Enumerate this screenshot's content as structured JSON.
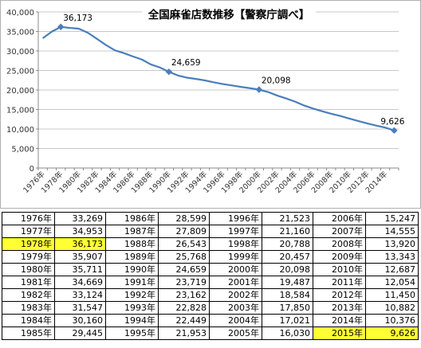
{
  "chart_data": {
    "type": "line",
    "title": "全国麻雀店数推移【警察庁調べ】",
    "xlabel": "",
    "ylabel": "",
    "ylim": [
      0,
      40000
    ],
    "yticks": [
      "0",
      "5,000",
      "10,000",
      "15,000",
      "20,000",
      "25,000",
      "30,000",
      "35,000",
      "40,000"
    ],
    "xtick_labels": [
      "1976年",
      "1978年",
      "1980年",
      "1982年",
      "1984年",
      "1986年",
      "1988年",
      "1990年",
      "1992年",
      "1994年",
      "1996年",
      "1998年",
      "2000年",
      "2002年",
      "2004年",
      "2006年",
      "2008年",
      "2010年",
      "2012年",
      "2014年"
    ],
    "grid": true,
    "legend": "none",
    "line_color": "#4a7ebb",
    "x": [
      1976,
      1977,
      1978,
      1979,
      1980,
      1981,
      1982,
      1983,
      1984,
      1985,
      1986,
      1987,
      1988,
      1989,
      1990,
      1991,
      1992,
      1993,
      1994,
      1995,
      1996,
      1997,
      1998,
      1999,
      2000,
      2001,
      2002,
      2003,
      2004,
      2005,
      2006,
      2007,
      2008,
      2009,
      2010,
      2011,
      2012,
      2013,
      2014,
      2015
    ],
    "values": [
      33269,
      34953,
      36173,
      35907,
      35711,
      34669,
      33124,
      31547,
      30160,
      29445,
      28599,
      27809,
      26543,
      25768,
      24659,
      23719,
      23162,
      22828,
      22449,
      21953,
      21523,
      21160,
      20788,
      20457,
      20098,
      19487,
      18584,
      17850,
      17021,
      16030,
      15247,
      14555,
      13920,
      13343,
      12687,
      12054,
      11450,
      10882,
      10376,
      9626
    ],
    "annotations": [
      {
        "year": 1978,
        "label": "36,173"
      },
      {
        "year": 1990,
        "label": "24,659"
      },
      {
        "year": 2000,
        "label": "20,098"
      },
      {
        "year": 2015,
        "label": "9,626"
      }
    ]
  },
  "table": {
    "highlight_color": "#ffff33",
    "columns": [
      {
        "rows": [
          [
            "1976年",
            "33,269"
          ],
          [
            "1977年",
            "34,953"
          ],
          [
            "1978年",
            "36,173"
          ],
          [
            "1979年",
            "35,907"
          ],
          [
            "1980年",
            "35,711"
          ],
          [
            "1981年",
            "34,669"
          ],
          [
            "1982年",
            "33,124"
          ],
          [
            "1983年",
            "31,547"
          ],
          [
            "1984年",
            "30,160"
          ],
          [
            "1985年",
            "29,445"
          ]
        ]
      },
      {
        "rows": [
          [
            "1986年",
            "28,599"
          ],
          [
            "1987年",
            "27,809"
          ],
          [
            "1988年",
            "26,543"
          ],
          [
            "1989年",
            "25,768"
          ],
          [
            "1990年",
            "24,659"
          ],
          [
            "1991年",
            "23,719"
          ],
          [
            "1992年",
            "23,162"
          ],
          [
            "1993年",
            "22,828"
          ],
          [
            "1994年",
            "22,449"
          ],
          [
            "1995年",
            "21,953"
          ]
        ]
      },
      {
        "rows": [
          [
            "1996年",
            "21,523"
          ],
          [
            "1997年",
            "21,160"
          ],
          [
            "1998年",
            "20,788"
          ],
          [
            "1999年",
            "20,457"
          ],
          [
            "2000年",
            "20,098"
          ],
          [
            "2001年",
            "19,487"
          ],
          [
            "2002年",
            "18,584"
          ],
          [
            "2003年",
            "17,850"
          ],
          [
            "2004年",
            "17,021"
          ],
          [
            "2005年",
            "16,030"
          ]
        ]
      },
      {
        "rows": [
          [
            "2006年",
            "15,247"
          ],
          [
            "2007年",
            "14,555"
          ],
          [
            "2008年",
            "13,920"
          ],
          [
            "2009年",
            "13,343"
          ],
          [
            "2010年",
            "12,687"
          ],
          [
            "2011年",
            "12,054"
          ],
          [
            "2012年",
            "11,450"
          ],
          [
            "2013年",
            "10,882"
          ],
          [
            "2014年",
            "10,376"
          ],
          [
            "2015年",
            "9,626"
          ]
        ]
      }
    ],
    "highlighted": [
      [
        0,
        2
      ],
      [
        3,
        9
      ]
    ]
  }
}
